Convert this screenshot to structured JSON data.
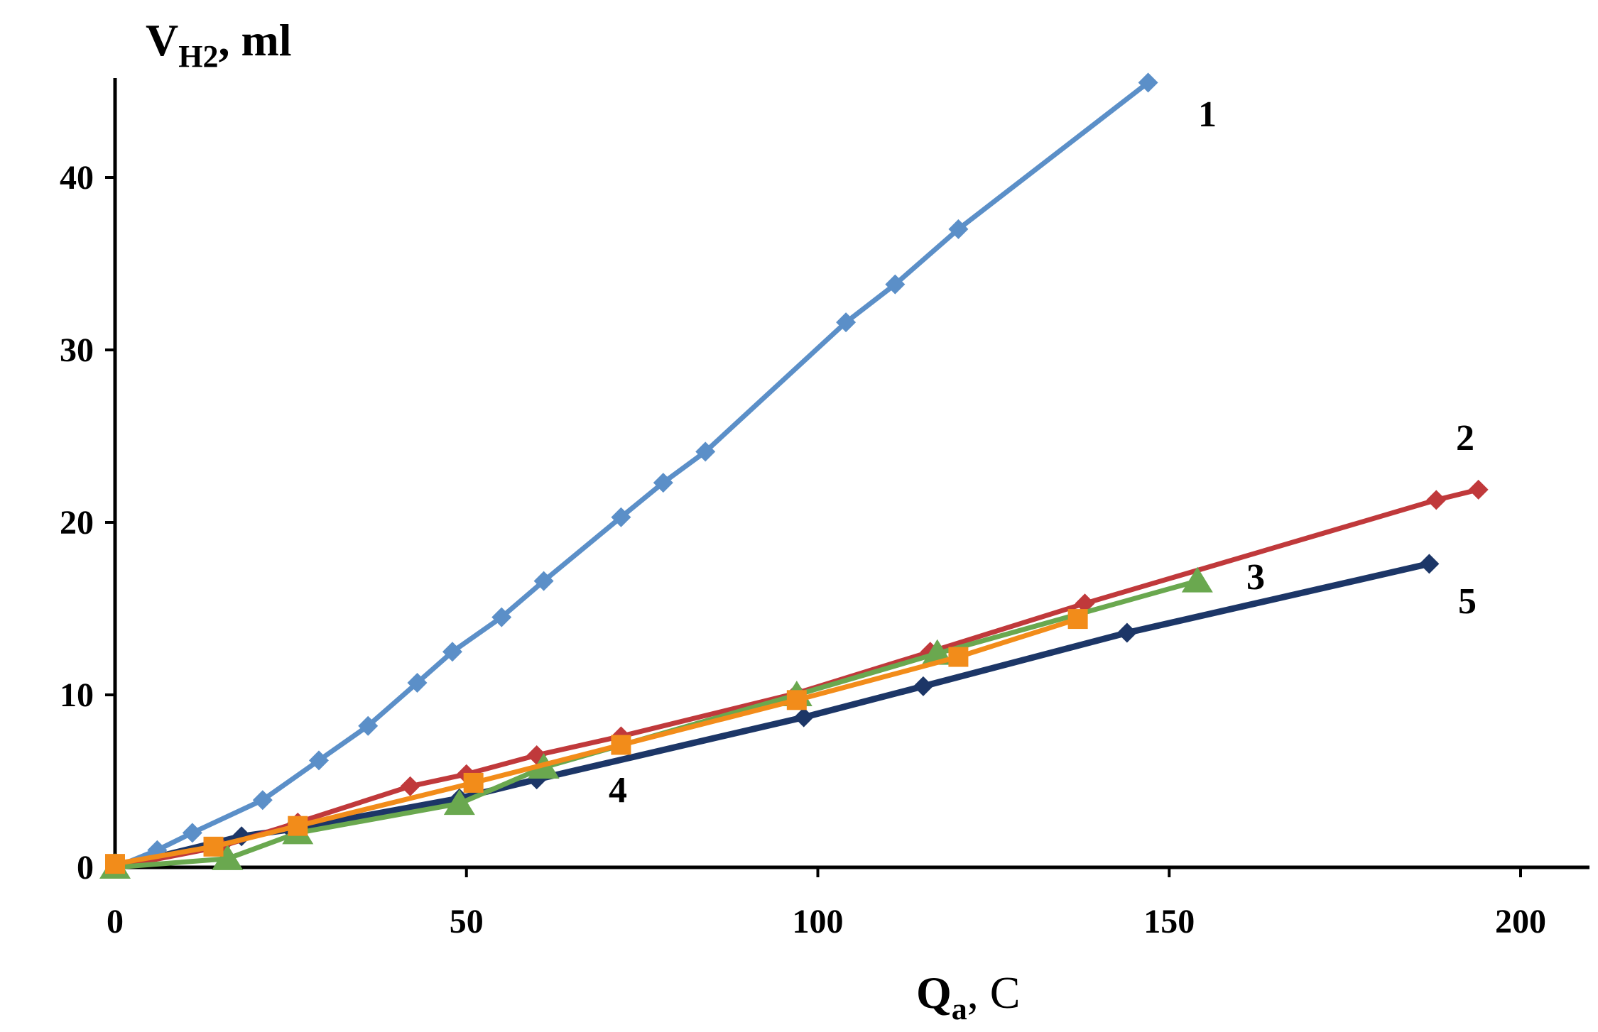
{
  "chart_data": {
    "type": "line",
    "title": "",
    "ylabel": {
      "main": "V",
      "sub": "H2",
      "unit": ", ml"
    },
    "xlabel": {
      "main": "Q",
      "sub": "a",
      "unit": ", C"
    },
    "xlim": [
      0,
      210
    ],
    "ylim": [
      0,
      45
    ],
    "x_ticks": [
      "0",
      "50",
      "100",
      "150",
      "200"
    ],
    "y_ticks": [
      "0",
      "10",
      "20",
      "30",
      "40"
    ],
    "grid": false,
    "series": [
      {
        "name": "1",
        "color": "#5b8fc8",
        "marker": "diamond",
        "x": [
          0,
          6,
          11,
          21,
          29,
          36,
          43,
          48,
          55,
          61,
          72,
          78,
          84,
          104,
          111,
          120,
          147
        ],
        "y": [
          0,
          1,
          2,
          3.9,
          6.2,
          8.2,
          10.7,
          12.5,
          14.5,
          16.6,
          20.3,
          22.3,
          24.1,
          31.6,
          33.8,
          37,
          45.5
        ]
      },
      {
        "name": "2",
        "color": "#c0393b",
        "marker": "diamond",
        "x": [
          0,
          15,
          26,
          42,
          50,
          60,
          72,
          97,
          116,
          138,
          188,
          194
        ],
        "y": [
          0,
          1.2,
          2.6,
          4.7,
          5.4,
          6.5,
          7.6,
          10.1,
          12.5,
          15.3,
          21.3,
          21.9
        ]
      },
      {
        "name": "3",
        "color": "#6aa84f",
        "marker": "triangle",
        "x": [
          0,
          16,
          26,
          49,
          61,
          97,
          117,
          154
        ],
        "y": [
          0,
          0.5,
          2,
          3.7,
          5.8,
          10,
          12.4,
          16.6
        ]
      },
      {
        "name": "4",
        "color": "#f28c1a",
        "marker": "square",
        "x": [
          0,
          14,
          26,
          51,
          72,
          97,
          120,
          137
        ],
        "y": [
          0.2,
          1.2,
          2.4,
          4.9,
          7.1,
          9.7,
          12.2,
          14.4
        ]
      },
      {
        "name": "5",
        "color": "#1c3667",
        "marker": "diamond",
        "x": [
          0,
          18,
          25,
          49,
          60,
          98,
          115,
          144,
          187
        ],
        "y": [
          0,
          1.8,
          2.2,
          4,
          5.1,
          8.7,
          10.5,
          13.6,
          17.6
        ]
      }
    ],
    "series_labels": [
      {
        "text": "1",
        "series": 0
      },
      {
        "text": "2",
        "series": 1
      },
      {
        "text": "3",
        "series": 2
      },
      {
        "text": "4",
        "series": 3
      },
      {
        "text": "5",
        "series": 4
      }
    ]
  }
}
